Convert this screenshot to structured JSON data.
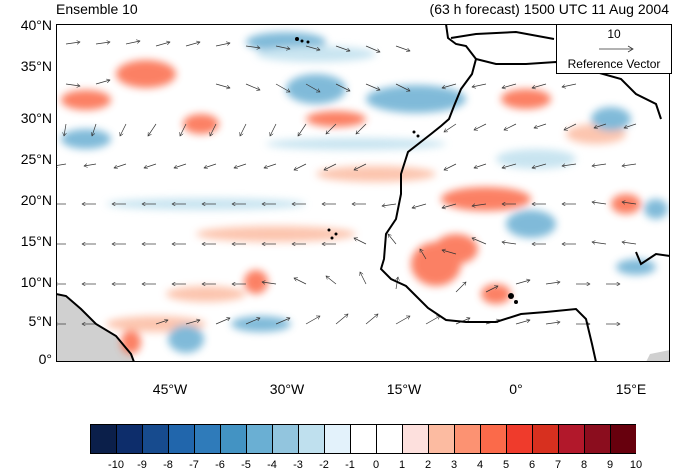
{
  "title_left": "Ensemble 10",
  "title_right": "(63 h forecast) 1500 UTC 11 Aug 2004",
  "reference_vector": {
    "value": "10",
    "label": "Reference Vector"
  },
  "lat_labels": [
    "40°N",
    "35°N",
    "30°N",
    "25°N",
    "20°N",
    "15°N",
    "10°N",
    "5°N",
    "0°"
  ],
  "lon_labels": [
    "45°W",
    "30°W",
    "15°W",
    "0°",
    "15°E"
  ],
  "colorbar": {
    "labels": [
      "-10",
      "-9",
      "-8",
      "-7",
      "-6",
      "-5",
      "-4",
      "-3",
      "-2",
      "-1",
      "0",
      "1",
      "2",
      "3",
      "4",
      "5",
      "6",
      "7",
      "8",
      "9",
      "10"
    ],
    "colors": [
      "#0b1f4a",
      "#0d2d6b",
      "#174b8e",
      "#2166ac",
      "#2f7bba",
      "#4393c3",
      "#6aafd3",
      "#92c5de",
      "#bfe0ee",
      "#e3f2fb",
      "#ffffff",
      "#ffffff",
      "#fde0dd",
      "#fcbba1",
      "#fc9272",
      "#fb6a4a",
      "#ef3b2c",
      "#d7301f",
      "#b2182b",
      "#8b0d1e",
      "#67000d"
    ]
  },
  "colors": {
    "positive": "#d7301f",
    "negative": "#2166ac",
    "land": "#d0d0d0"
  }
}
